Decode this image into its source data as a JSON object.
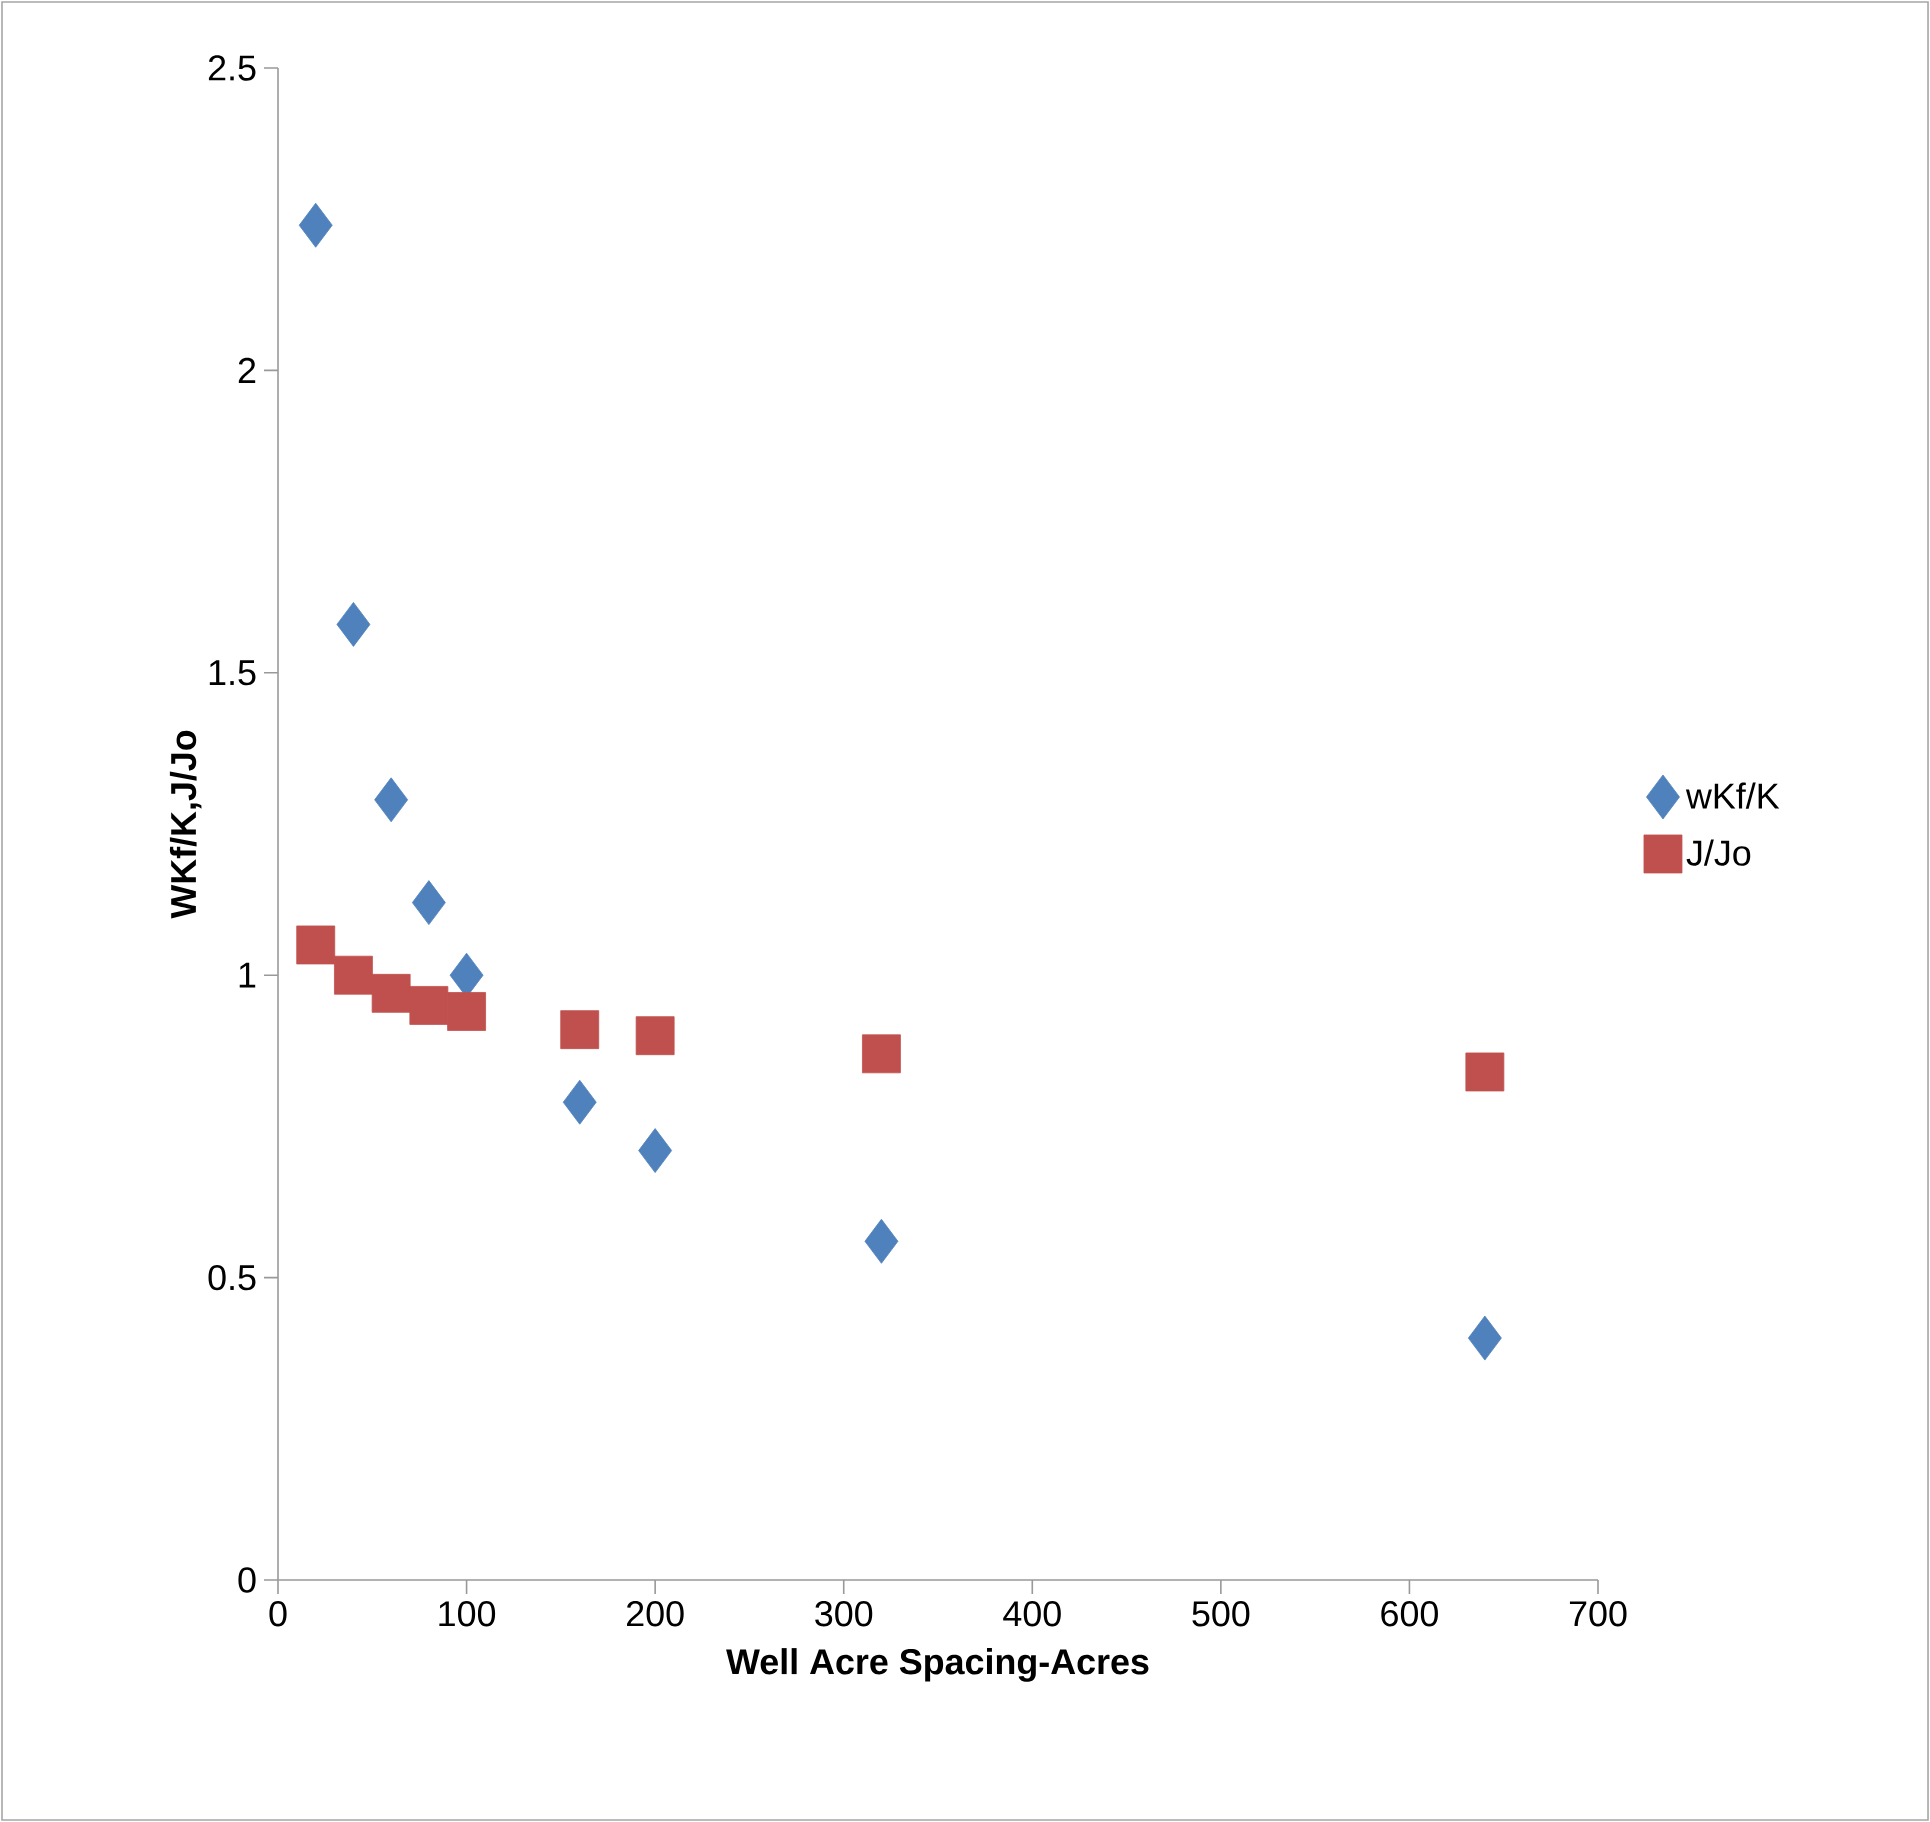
{
  "chart_data": {
    "type": "scatter",
    "xlabel": "Well Acre Spacing-Acres",
    "ylabel": "WKf/K,J/Jo",
    "xlim": [
      0,
      700
    ],
    "ylim": [
      0,
      2.5
    ],
    "xticks": [
      0,
      100,
      200,
      300,
      400,
      500,
      600,
      700
    ],
    "yticks": [
      0,
      0.5,
      1,
      1.5,
      2,
      2.5
    ],
    "legend": "right",
    "series": [
      {
        "name": "wKf/K",
        "color": "#4f81bd",
        "marker": "diamond",
        "x": [
          20,
          40,
          60,
          80,
          100,
          160,
          200,
          320,
          640
        ],
        "values": [
          2.24,
          1.58,
          1.29,
          1.12,
          1.0,
          0.79,
          0.71,
          0.56,
          0.4
        ]
      },
      {
        "name": "J/Jo",
        "color": "#c0504d",
        "marker": "square",
        "x": [
          20,
          40,
          60,
          80,
          100,
          160,
          200,
          320,
          640
        ],
        "values": [
          1.05,
          1.0,
          0.97,
          0.95,
          0.94,
          0.91,
          0.9,
          0.87,
          0.84
        ]
      }
    ]
  }
}
